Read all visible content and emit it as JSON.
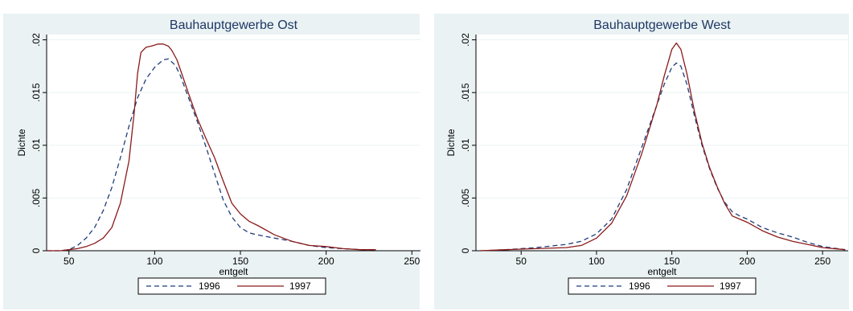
{
  "chart_data": [
    {
      "type": "line",
      "title": "Bauhauptgewerbe Ost",
      "xlabel": "entgelt",
      "ylabel": "Dichte",
      "xlim": [
        37,
        255
      ],
      "ylim": [
        0,
        0.0205
      ],
      "xticks": [
        50,
        100,
        150,
        200,
        250
      ],
      "xtick_labels": [
        "50",
        "100",
        "150",
        "200",
        "250"
      ],
      "yticks": [
        0,
        0.005,
        0.01,
        0.015,
        0.02
      ],
      "ytick_labels": [
        "0",
        ".005",
        ".01",
        ".015",
        ".02"
      ],
      "grid": true,
      "legend_position": "bottom",
      "series": [
        {
          "name": "1996",
          "color": "#1f3d7a",
          "dash": "dashed",
          "x": [
            37,
            45,
            50,
            55,
            60,
            65,
            70,
            75,
            80,
            85,
            90,
            95,
            100,
            105,
            108,
            112,
            115,
            120,
            125,
            130,
            135,
            140,
            145,
            150,
            155,
            160,
            170,
            180,
            190,
            200,
            210,
            220,
            229
          ],
          "y": [
            0.0,
            0.0,
            0.0001,
            0.0005,
            0.0012,
            0.0022,
            0.0038,
            0.006,
            0.0088,
            0.0118,
            0.0145,
            0.0163,
            0.0174,
            0.0181,
            0.0182,
            0.0176,
            0.0166,
            0.0144,
            0.0122,
            0.0098,
            0.0073,
            0.0048,
            0.0032,
            0.0022,
            0.0017,
            0.0015,
            0.0012,
            0.0009,
            0.0005,
            0.0003,
            0.0002,
            0.0001,
            0.0001
          ]
        },
        {
          "name": "1997",
          "color": "#8b1a1a",
          "dash": "solid",
          "x": [
            37,
            45,
            50,
            55,
            60,
            65,
            70,
            75,
            80,
            85,
            88,
            90,
            92,
            95,
            98,
            100,
            102,
            105,
            108,
            110,
            113,
            116,
            120,
            125,
            130,
            135,
            140,
            145,
            150,
            155,
            160,
            170,
            180,
            190,
            200,
            210,
            220,
            229
          ],
          "y": [
            0.0,
            0.0,
            0.0001,
            0.0002,
            0.0004,
            0.0007,
            0.0012,
            0.0022,
            0.0045,
            0.0085,
            0.013,
            0.0168,
            0.0188,
            0.0193,
            0.0194,
            0.0195,
            0.0196,
            0.0196,
            0.0194,
            0.019,
            0.0181,
            0.0167,
            0.0148,
            0.0125,
            0.0106,
            0.0088,
            0.0066,
            0.0045,
            0.0035,
            0.0028,
            0.0024,
            0.0015,
            0.0009,
            0.0005,
            0.0004,
            0.0002,
            0.0001,
            0.0001
          ]
        }
      ]
    },
    {
      "type": "line",
      "title": "Bauhauptgewerbe West",
      "xlabel": "entgelt",
      "ylabel": "Dichte",
      "xlim": [
        20,
        267
      ],
      "ylim": [
        0,
        0.0205
      ],
      "xticks": [
        50,
        100,
        150,
        200,
        250
      ],
      "xtick_labels": [
        "50",
        "100",
        "150",
        "200",
        "250"
      ],
      "yticks": [
        0,
        0.005,
        0.01,
        0.015,
        0.02
      ],
      "ytick_labels": [
        "0",
        ".005",
        ".01",
        ".015",
        ".02"
      ],
      "grid": true,
      "legend_position": "bottom",
      "series": [
        {
          "name": "1996",
          "color": "#1f3d7a",
          "dash": "dashed",
          "x": [
            23,
            40,
            60,
            80,
            90,
            100,
            110,
            120,
            130,
            140,
            145,
            150,
            153,
            156,
            160,
            165,
            170,
            175,
            180,
            185,
            190,
            195,
            200,
            210,
            220,
            230,
            240,
            250,
            265
          ],
          "y": [
            0.0,
            0.0001,
            0.0003,
            0.0006,
            0.0009,
            0.0016,
            0.003,
            0.0058,
            0.0098,
            0.0138,
            0.0158,
            0.0174,
            0.0178,
            0.0175,
            0.0158,
            0.0128,
            0.01,
            0.0078,
            0.006,
            0.0046,
            0.0037,
            0.0033,
            0.003,
            0.0022,
            0.0017,
            0.0013,
            0.0008,
            0.0004,
            0.0001
          ]
        },
        {
          "name": "1997",
          "color": "#8b1a1a",
          "dash": "solid",
          "x": [
            23,
            40,
            60,
            80,
            90,
            100,
            110,
            120,
            130,
            140,
            145,
            150,
            153,
            156,
            160,
            165,
            170,
            175,
            180,
            185,
            190,
            195,
            200,
            210,
            220,
            230,
            240,
            250,
            265
          ],
          "y": [
            0.0,
            0.0001,
            0.0002,
            0.0003,
            0.0005,
            0.0012,
            0.0026,
            0.0052,
            0.0092,
            0.0138,
            0.0166,
            0.0191,
            0.0197,
            0.0191,
            0.0168,
            0.0132,
            0.0102,
            0.0079,
            0.0061,
            0.0045,
            0.0033,
            0.003,
            0.0027,
            0.0019,
            0.0013,
            0.0009,
            0.0006,
            0.0003,
            0.0001
          ]
        }
      ]
    }
  ]
}
